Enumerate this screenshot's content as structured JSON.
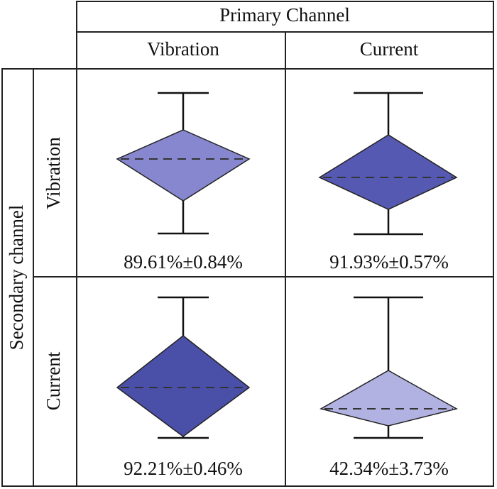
{
  "header": {
    "title": "Primary Channel",
    "columns": [
      "Vibration",
      "Current"
    ]
  },
  "side": {
    "title": "Secondary channel",
    "rows": [
      "Vibration",
      "Current"
    ]
  },
  "cells": [
    [
      "89.61%±0.84%",
      "91.93%±0.57%"
    ],
    [
      "92.21%±0.46%",
      "42.34%±3.73%"
    ]
  ]
}
